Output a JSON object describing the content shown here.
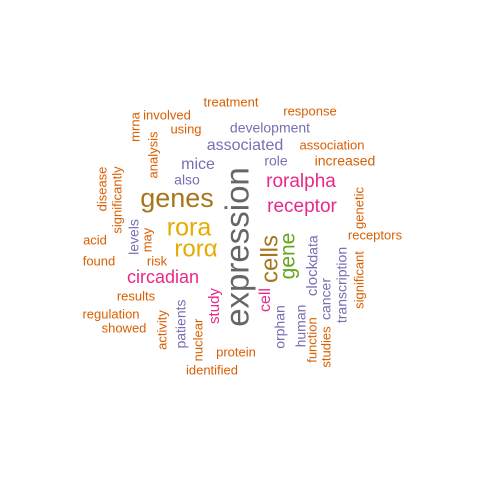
{
  "palette": {
    "gray": "#666666",
    "gold": "#E6AB02",
    "brown": "#A6761D",
    "magenta": "#E7298A",
    "green": "#66A61E",
    "purple": "#7570B3",
    "orange": "#D95F02"
  },
  "words": [
    {
      "text": "expression",
      "color": "gray",
      "size": 33,
      "rotate": true
    },
    {
      "text": "genes",
      "color": "brown",
      "size": 27,
      "rotate": false
    },
    {
      "text": "rora",
      "color": "gold",
      "size": 25,
      "rotate": false
    },
    {
      "text": "rorα",
      "color": "gold",
      "size": 24,
      "rotate": false
    },
    {
      "text": "cells",
      "color": "brown",
      "size": 24,
      "rotate": true
    },
    {
      "text": "gene",
      "color": "green",
      "size": 21,
      "rotate": true
    },
    {
      "text": "roralpha",
      "color": "magenta",
      "size": 19,
      "rotate": false
    },
    {
      "text": "receptor",
      "color": "magenta",
      "size": 19,
      "rotate": false
    },
    {
      "text": "circadian",
      "color": "magenta",
      "size": 18,
      "rotate": false
    },
    {
      "text": "cell",
      "color": "magenta",
      "size": 16,
      "rotate": true
    },
    {
      "text": "associated",
      "color": "purple",
      "size": 16,
      "rotate": false
    },
    {
      "text": "mice",
      "color": "purple",
      "size": 16,
      "rotate": false
    },
    {
      "text": "study",
      "color": "magenta",
      "size": 15,
      "rotate": true
    },
    {
      "text": "clock",
      "color": "purple",
      "size": 15,
      "rotate": true
    },
    {
      "text": "development",
      "color": "purple",
      "size": 14,
      "rotate": false
    },
    {
      "text": "also",
      "color": "purple",
      "size": 14,
      "rotate": false
    },
    {
      "text": "role",
      "color": "purple",
      "size": 14,
      "rotate": false
    },
    {
      "text": "increased",
      "color": "orange",
      "size": 14,
      "rotate": false
    },
    {
      "text": "patients",
      "color": "purple",
      "size": 14,
      "rotate": true
    },
    {
      "text": "orphan",
      "color": "purple",
      "size": 14,
      "rotate": true
    },
    {
      "text": "human",
      "color": "purple",
      "size": 14,
      "rotate": true
    },
    {
      "text": "data",
      "color": "purple",
      "size": 14,
      "rotate": true
    },
    {
      "text": "cancer",
      "color": "purple",
      "size": 14,
      "rotate": true
    },
    {
      "text": "transcription",
      "color": "purple",
      "size": 14,
      "rotate": true
    },
    {
      "text": "levels",
      "color": "purple",
      "size": 14,
      "rotate": true
    },
    {
      "text": "treatment",
      "color": "orange",
      "size": 13,
      "rotate": false
    },
    {
      "text": "response",
      "color": "orange",
      "size": 13,
      "rotate": false
    },
    {
      "text": "involved",
      "color": "orange",
      "size": 13,
      "rotate": false
    },
    {
      "text": "using",
      "color": "orange",
      "size": 13,
      "rotate": false
    },
    {
      "text": "association",
      "color": "orange",
      "size": 13,
      "rotate": false
    },
    {
      "text": "mrna",
      "color": "orange",
      "size": 13,
      "rotate": true
    },
    {
      "text": "analysis",
      "color": "orange",
      "size": 13,
      "rotate": true
    },
    {
      "text": "disease",
      "color": "orange",
      "size": 13,
      "rotate": true
    },
    {
      "text": "significantly",
      "color": "orange",
      "size": 13,
      "rotate": true
    },
    {
      "text": "genetic",
      "color": "orange",
      "size": 13,
      "rotate": true
    },
    {
      "text": "acid",
      "color": "orange",
      "size": 13,
      "rotate": false
    },
    {
      "text": "may",
      "color": "orange",
      "size": 13,
      "rotate": true
    },
    {
      "text": "receptors",
      "color": "orange",
      "size": 13,
      "rotate": false
    },
    {
      "text": "found",
      "color": "orange",
      "size": 13,
      "rotate": false
    },
    {
      "text": "risk",
      "color": "orange",
      "size": 13,
      "rotate": false
    },
    {
      "text": "significant",
      "color": "orange",
      "size": 13,
      "rotate": true
    },
    {
      "text": "results",
      "color": "orange",
      "size": 13,
      "rotate": false
    },
    {
      "text": "regulation",
      "color": "orange",
      "size": 13,
      "rotate": false
    },
    {
      "text": "showed",
      "color": "orange",
      "size": 13,
      "rotate": false
    },
    {
      "text": "activity",
      "color": "orange",
      "size": 13,
      "rotate": true
    },
    {
      "text": "nuclear",
      "color": "orange",
      "size": 13,
      "rotate": true
    },
    {
      "text": "protein",
      "color": "orange",
      "size": 13,
      "rotate": false
    },
    {
      "text": "identified",
      "color": "orange",
      "size": 13,
      "rotate": false
    },
    {
      "text": "studies",
      "color": "orange",
      "size": 13,
      "rotate": true
    },
    {
      "text": "function",
      "color": "orange",
      "size": 13,
      "rotate": true
    }
  ]
}
